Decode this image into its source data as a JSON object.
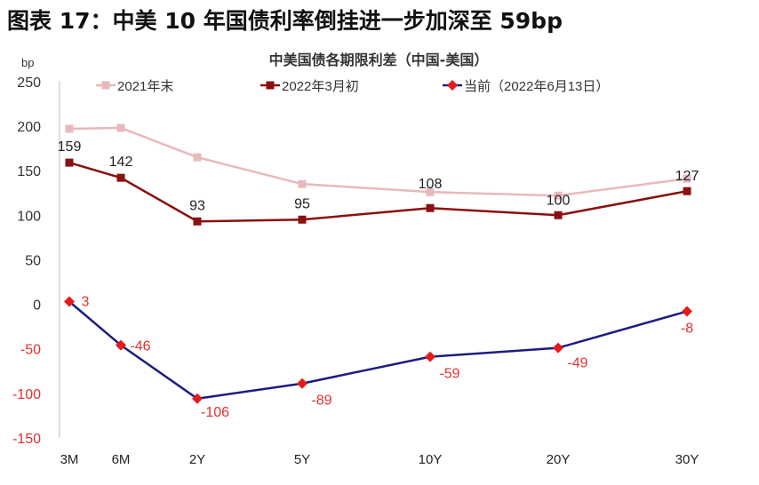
{
  "figure_title": "图表 17：中美 10 年国债利率倒挂进一步加深至 59bp",
  "chart_data": {
    "type": "line",
    "title": "中美国债各期限利差（中国-美国）",
    "ylabel": "bp",
    "categories": [
      "3M",
      "6M",
      "2Y",
      "5Y",
      "10Y",
      "20Y",
      "30Y"
    ],
    "ylim": [
      -150,
      250
    ],
    "yticks": [
      250,
      200,
      150,
      100,
      50,
      0,
      -50,
      -100,
      -150
    ],
    "grid": false,
    "legend": "top",
    "series": [
      {
        "name": "2021年末",
        "color": "#e8b8bc",
        "marker": "square",
        "values": [
          197,
          198,
          165,
          135,
          126,
          122,
          141
        ],
        "labels": []
      },
      {
        "name": "2022年3月初",
        "color": "#8b1010",
        "marker": "square",
        "values": [
          159,
          142,
          93,
          95,
          108,
          100,
          127
        ],
        "labels": [
          "159",
          "142",
          "93",
          "95",
          "108",
          "100",
          "127"
        ],
        "label_color": "#222222"
      },
      {
        "name": "当前（2022年6月13日）",
        "color": "#1c1c80",
        "marker": "diamond",
        "marker_color": "#e41b1b",
        "values": [
          3,
          -46,
          -106,
          -89,
          -59,
          -49,
          -8
        ],
        "labels": [
          "3",
          "-46",
          "-106",
          "-89",
          "-59",
          "-49",
          "-8"
        ],
        "label_color": "#e03030"
      }
    ]
  }
}
